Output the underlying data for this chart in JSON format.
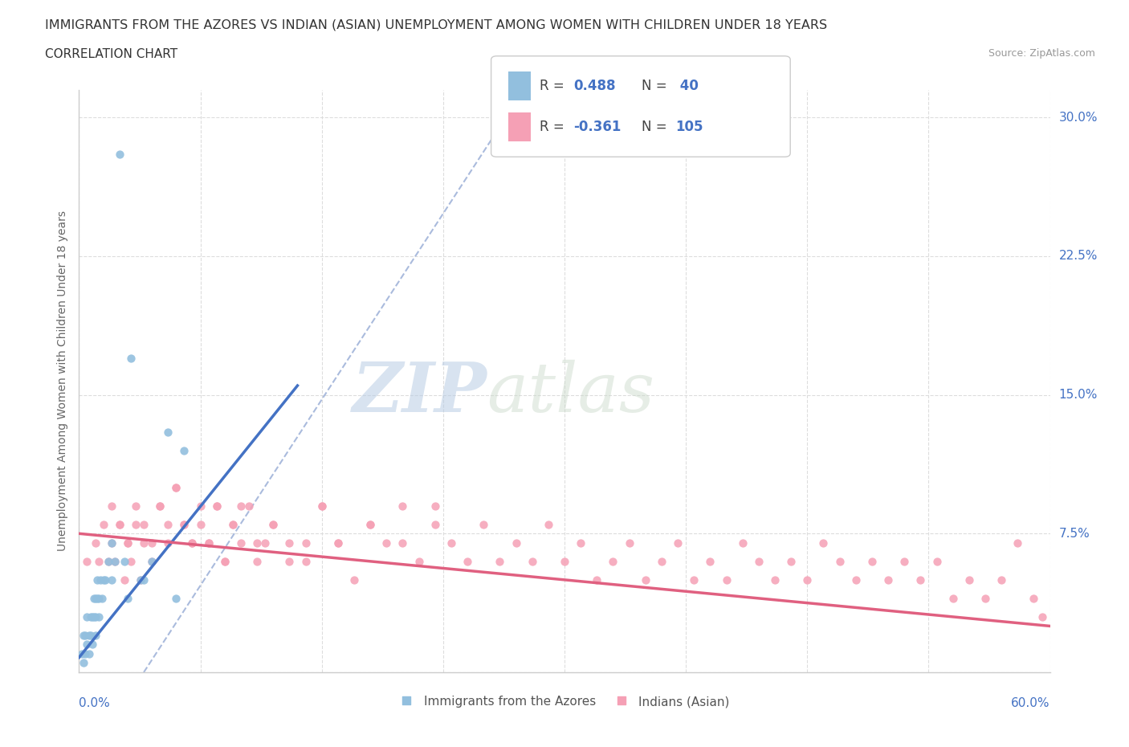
{
  "title1": "IMMIGRANTS FROM THE AZORES VS INDIAN (ASIAN) UNEMPLOYMENT AMONG WOMEN WITH CHILDREN UNDER 18 YEARS",
  "title2": "CORRELATION CHART",
  "source": "Source: ZipAtlas.com",
  "ylabel": "Unemployment Among Women with Children Under 18 years",
  "yticks": [
    0.0,
    0.075,
    0.15,
    0.225,
    0.3
  ],
  "ytick_labels": [
    "",
    "7.5%",
    "15.0%",
    "22.5%",
    "30.0%"
  ],
  "xmin": 0.0,
  "xmax": 0.6,
  "ymin": 0.0,
  "ymax": 0.315,
  "color_azores": "#92BFDE",
  "color_indian": "#F5A0B5",
  "color_blue_text": "#4472C4",
  "trend_color_azores": "#4472C4",
  "trend_color_indian": "#E06080",
  "diag_color": "#AABBDD",
  "watermark_zip": "ZIP",
  "watermark_atlas": "atlas",
  "legend_label_azores": "Immigrants from the Azores",
  "legend_label_indian": "Indians (Asian)",
  "azores_x": [
    0.002,
    0.003,
    0.004,
    0.005,
    0.005,
    0.006,
    0.007,
    0.007,
    0.008,
    0.009,
    0.009,
    0.01,
    0.01,
    0.011,
    0.011,
    0.012,
    0.013,
    0.014,
    0.015,
    0.016,
    0.018,
    0.02,
    0.022,
    0.025,
    0.028,
    0.032,
    0.038,
    0.045,
    0.055,
    0.065,
    0.003,
    0.004,
    0.006,
    0.008,
    0.01,
    0.012,
    0.02,
    0.03,
    0.04,
    0.06
  ],
  "azores_y": [
    0.01,
    0.02,
    0.02,
    0.03,
    0.015,
    0.02,
    0.03,
    0.02,
    0.03,
    0.03,
    0.04,
    0.03,
    0.04,
    0.04,
    0.05,
    0.04,
    0.05,
    0.04,
    0.05,
    0.05,
    0.06,
    0.07,
    0.06,
    0.28,
    0.06,
    0.17,
    0.05,
    0.06,
    0.13,
    0.12,
    0.005,
    0.01,
    0.01,
    0.015,
    0.02,
    0.03,
    0.05,
    0.04,
    0.05,
    0.04
  ],
  "indian_x": [
    0.02,
    0.025,
    0.03,
    0.035,
    0.04,
    0.045,
    0.05,
    0.055,
    0.06,
    0.065,
    0.07,
    0.075,
    0.08,
    0.085,
    0.09,
    0.095,
    0.1,
    0.105,
    0.11,
    0.115,
    0.12,
    0.13,
    0.14,
    0.15,
    0.16,
    0.17,
    0.18,
    0.19,
    0.2,
    0.21,
    0.22,
    0.23,
    0.24,
    0.25,
    0.26,
    0.27,
    0.28,
    0.29,
    0.3,
    0.31,
    0.32,
    0.33,
    0.34,
    0.35,
    0.36,
    0.37,
    0.38,
    0.39,
    0.4,
    0.41,
    0.42,
    0.43,
    0.44,
    0.45,
    0.46,
    0.47,
    0.48,
    0.49,
    0.5,
    0.51,
    0.52,
    0.53,
    0.54,
    0.55,
    0.56,
    0.57,
    0.58,
    0.59,
    0.595,
    0.005,
    0.01,
    0.012,
    0.015,
    0.018,
    0.02,
    0.022,
    0.025,
    0.028,
    0.03,
    0.032,
    0.035,
    0.038,
    0.04,
    0.045,
    0.05,
    0.055,
    0.06,
    0.065,
    0.07,
    0.075,
    0.08,
    0.085,
    0.09,
    0.095,
    0.1,
    0.11,
    0.12,
    0.13,
    0.14,
    0.15,
    0.16,
    0.18,
    0.2,
    0.22
  ],
  "indian_y": [
    0.09,
    0.08,
    0.07,
    0.09,
    0.08,
    0.07,
    0.09,
    0.08,
    0.1,
    0.08,
    0.07,
    0.08,
    0.07,
    0.09,
    0.06,
    0.08,
    0.07,
    0.09,
    0.06,
    0.07,
    0.08,
    0.07,
    0.06,
    0.09,
    0.07,
    0.05,
    0.08,
    0.07,
    0.09,
    0.06,
    0.08,
    0.07,
    0.06,
    0.08,
    0.06,
    0.07,
    0.06,
    0.08,
    0.06,
    0.07,
    0.05,
    0.06,
    0.07,
    0.05,
    0.06,
    0.07,
    0.05,
    0.06,
    0.05,
    0.07,
    0.06,
    0.05,
    0.06,
    0.05,
    0.07,
    0.06,
    0.05,
    0.06,
    0.05,
    0.06,
    0.05,
    0.06,
    0.04,
    0.05,
    0.04,
    0.05,
    0.07,
    0.04,
    0.03,
    0.06,
    0.07,
    0.06,
    0.08,
    0.06,
    0.07,
    0.06,
    0.08,
    0.05,
    0.07,
    0.06,
    0.08,
    0.05,
    0.07,
    0.06,
    0.09,
    0.07,
    0.1,
    0.08,
    0.07,
    0.09,
    0.07,
    0.09,
    0.06,
    0.08,
    0.09,
    0.07,
    0.08,
    0.06,
    0.07,
    0.09,
    0.07,
    0.08,
    0.07,
    0.09
  ]
}
